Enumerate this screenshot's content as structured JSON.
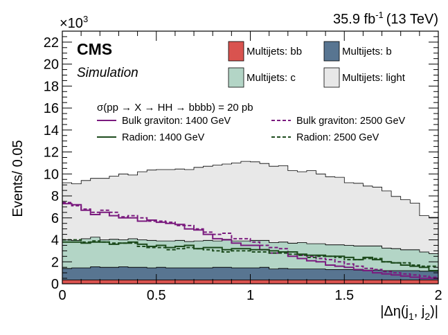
{
  "chart_data": {
    "type": "area",
    "stacked": true,
    "step": true,
    "ylabel": "Events/ 0.05",
    "y_multiplier": "×10",
    "y_multiplier_exp": "3",
    "lumi_label": "35.9 fb",
    "lumi_exp": "-1",
    "lumi_energy": "(13 TeV)",
    "xlim": [
      0,
      2
    ],
    "ylim": [
      0,
      23
    ],
    "x_ticks": [
      0,
      0.5,
      1,
      1.5,
      2
    ],
    "x_tick_labels": [
      "0",
      "0.5",
      "1",
      "1.5",
      "2"
    ],
    "y_ticks": [
      0,
      2,
      4,
      6,
      8,
      10,
      12,
      14,
      16,
      18,
      20,
      22
    ],
    "y_tick_labels": [
      "0",
      "2",
      "4",
      "6",
      "8",
      "10",
      "12",
      "14",
      "16",
      "18",
      "20",
      "22"
    ],
    "x_edges": [
      0,
      0.05,
      0.1,
      0.15,
      0.2,
      0.25,
      0.3,
      0.35,
      0.4,
      0.45,
      0.5,
      0.55,
      0.6,
      0.65,
      0.7,
      0.75,
      0.8,
      0.85,
      0.9,
      0.95,
      1.0,
      1.05,
      1.1,
      1.15,
      1.2,
      1.25,
      1.3,
      1.35,
      1.4,
      1.45,
      1.5,
      1.55,
      1.6,
      1.65,
      1.7,
      1.75,
      1.8,
      1.85,
      1.9,
      1.95,
      2.0
    ],
    "stack": [
      {
        "name": "Multijets: bb",
        "color": "#d9534f",
        "values": [
          0.35,
          0.35,
          0.35,
          0.35,
          0.35,
          0.35,
          0.35,
          0.35,
          0.35,
          0.35,
          0.35,
          0.35,
          0.35,
          0.35,
          0.35,
          0.35,
          0.35,
          0.35,
          0.35,
          0.35,
          0.35,
          0.35,
          0.35,
          0.35,
          0.35,
          0.35,
          0.35,
          0.35,
          0.35,
          0.35,
          0.35,
          0.35,
          0.35,
          0.35,
          0.35,
          0.35,
          0.35,
          0.35,
          0.35,
          0.35
        ]
      },
      {
        "name": "Multijets: b",
        "color": "#587591",
        "values": [
          1.05,
          1.1,
          1.1,
          1.2,
          1.15,
          1.15,
          1.2,
          1.15,
          1.15,
          1.1,
          1.15,
          1.1,
          1.1,
          1.1,
          1.1,
          1.1,
          1.15,
          1.15,
          1.1,
          1.1,
          1.1,
          1.15,
          1.0,
          1.05,
          1.0,
          1.0,
          1.0,
          1.0,
          0.95,
          0.95,
          0.95,
          0.9,
          0.9,
          0.9,
          0.85,
          0.85,
          0.85,
          0.85,
          0.8,
          0.8
        ]
      },
      {
        "name": "Multijets: c",
        "color": "#b3d5c6",
        "values": [
          2.6,
          2.5,
          2.65,
          2.7,
          2.5,
          2.55,
          2.45,
          2.6,
          2.5,
          2.5,
          2.4,
          2.45,
          2.5,
          2.4,
          2.45,
          2.5,
          2.4,
          2.55,
          2.45,
          2.45,
          2.5,
          2.45,
          2.4,
          2.4,
          2.35,
          2.4,
          2.3,
          2.3,
          2.25,
          2.25,
          2.2,
          2.2,
          2.2,
          2.2,
          2.05,
          2.0,
          1.9,
          1.9,
          1.75,
          1.6
        ]
      },
      {
        "name": "Multijets: light",
        "color": "#e8e8e8",
        "values": [
          5.2,
          5.15,
          5.3,
          5.35,
          5.6,
          5.75,
          6.0,
          5.8,
          6.2,
          6.4,
          6.5,
          6.5,
          6.5,
          6.55,
          6.7,
          6.75,
          6.9,
          6.85,
          7.1,
          7.25,
          7.15,
          7.0,
          6.95,
          6.95,
          6.6,
          6.45,
          6.65,
          6.35,
          6.2,
          6.15,
          5.7,
          5.7,
          5.45,
          5.35,
          5.2,
          4.75,
          4.55,
          4.25,
          3.3,
          3.3
        ]
      }
    ],
    "signal_title": "σ(pp → X → HH → bbbb) = 20 pb",
    "signals": [
      {
        "name": "Bulk graviton: 1400 GeV",
        "color": "#7a1a7e",
        "dash": false,
        "values": [
          7.3,
          7.2,
          6.7,
          6.3,
          6.5,
          6.2,
          6.0,
          6.0,
          5.7,
          5.8,
          5.6,
          5.5,
          5.4,
          5.0,
          4.9,
          4.5,
          4.1,
          4.0,
          3.7,
          3.5,
          3.5,
          3.1,
          2.8,
          2.9,
          2.5,
          2.3,
          2.1,
          2.0,
          1.7,
          1.6,
          1.5,
          1.3,
          1.2,
          1.0,
          0.9,
          0.8,
          0.7,
          0.6,
          0.5,
          0.5
        ]
      },
      {
        "name": "Bulk graviton: 2500 GeV",
        "color": "#7a1a7e",
        "dash": true,
        "values": [
          7.4,
          7.1,
          6.8,
          6.5,
          6.7,
          6.5,
          6.1,
          6.2,
          6.0,
          5.7,
          5.7,
          5.6,
          5.3,
          5.3,
          5.0,
          4.7,
          4.5,
          4.6,
          4.1,
          4.1,
          3.8,
          3.5,
          3.3,
          3.2,
          2.9,
          2.6,
          2.5,
          2.3,
          2.2,
          2.0,
          1.8,
          1.6,
          1.4,
          1.3,
          1.1,
          1.0,
          0.9,
          0.8,
          0.7,
          0.6
        ]
      },
      {
        "name": "Radion: 1400 GeV",
        "color": "#1c4a1c",
        "dash": false,
        "values": [
          3.8,
          3.8,
          3.7,
          3.8,
          3.8,
          3.6,
          3.7,
          3.8,
          3.6,
          3.4,
          3.5,
          3.3,
          3.4,
          3.5,
          3.2,
          3.3,
          3.3,
          3.1,
          3.2,
          3.2,
          3.1,
          3.1,
          3.0,
          2.9,
          2.9,
          2.7,
          2.6,
          2.6,
          2.5,
          2.5,
          2.4,
          2.2,
          2.4,
          2.2,
          2.0,
          1.9,
          1.7,
          1.6,
          1.5,
          1.2
        ]
      },
      {
        "name": "Radion: 2500 GeV",
        "color": "#1c4a1c",
        "dash": true,
        "values": [
          4.0,
          4.0,
          3.8,
          3.9,
          3.8,
          3.7,
          3.7,
          3.7,
          3.4,
          3.3,
          3.3,
          3.1,
          3.2,
          3.3,
          3.2,
          3.1,
          3.0,
          2.9,
          3.0,
          3.0,
          2.9,
          2.9,
          2.8,
          2.8,
          2.7,
          2.6,
          2.4,
          2.5,
          2.5,
          2.4,
          2.2,
          2.2,
          2.3,
          2.3,
          2.0,
          1.9,
          1.9,
          1.7,
          1.6,
          1.6
        ]
      }
    ],
    "legend_placement": "top-right"
  },
  "labels": {
    "experiment": "CMS",
    "tag": "Simulation",
    "xlabel_prefix": "|Δη(j",
    "xlabel_sub1": "1",
    "xlabel_mid": ", j",
    "xlabel_sub2": "2",
    "xlabel_suffix": ")|"
  }
}
